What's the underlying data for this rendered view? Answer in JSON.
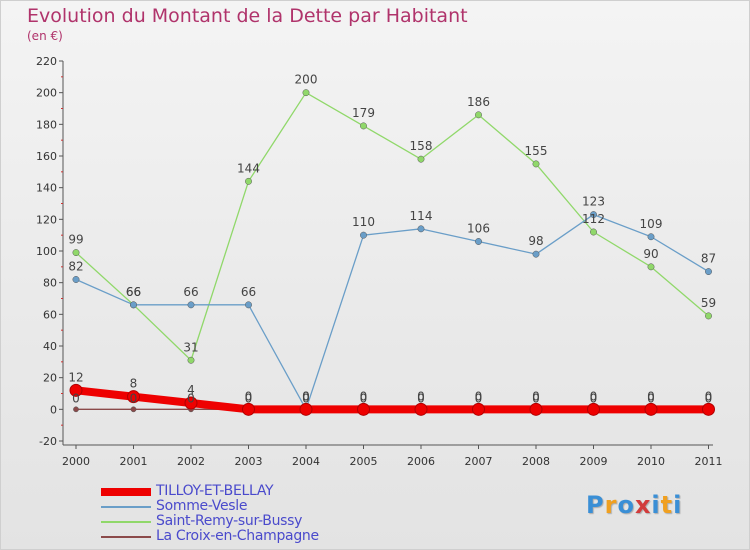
{
  "title": "Evolution du Montant de la Dette par Habitant",
  "unit": "(en €)",
  "logo": {
    "text": "Proxiti",
    "letter_colors": [
      "#3a8fd6",
      "#f0a020",
      "#3a8fd6",
      "#d23c3c",
      "#3a8fd6",
      "#f0a020",
      "#3a8fd6"
    ]
  },
  "chart_data": {
    "type": "line",
    "categories": [
      "2000",
      "2001",
      "2002",
      "2003",
      "2004",
      "2005",
      "2006",
      "2007",
      "2008",
      "2009",
      "2010",
      "2011"
    ],
    "ylim": [
      -20,
      220
    ],
    "yticks": [
      "-20",
      "0",
      "20",
      "40",
      "60",
      "80",
      "100",
      "120",
      "140",
      "160",
      "180",
      "200",
      "220"
    ],
    "grid": false,
    "legend_position": "bottom",
    "series": [
      {
        "name": "TILLOY-ET-BELLAY",
        "color": "#ee0000",
        "values": [
          12,
          8,
          4,
          0,
          0,
          0,
          0,
          0,
          0,
          0,
          0,
          0
        ],
        "labels": [
          "12",
          "8",
          "4",
          "0",
          "0",
          "0",
          "0",
          "0",
          "0",
          "0",
          "0",
          "0"
        ]
      },
      {
        "name": "Somme-Vesle",
        "color": "#6a9ec8",
        "values": [
          82,
          66,
          66,
          66,
          0,
          110,
          114,
          106,
          98,
          123,
          109,
          87
        ],
        "labels": [
          "82",
          "66",
          "66",
          "66",
          "0",
          "110",
          "114",
          "106",
          "98",
          "123",
          "109",
          "87"
        ]
      },
      {
        "name": "Saint-Remy-sur-Bussy",
        "color": "#90d86a",
        "values": [
          99,
          66,
          31,
          144,
          200,
          179,
          158,
          186,
          155,
          112,
          90,
          59
        ],
        "labels": [
          "99",
          "66",
          "31",
          "144",
          "200",
          "179",
          "158",
          "186",
          "155",
          "112",
          "90",
          "59"
        ]
      },
      {
        "name": "La Croix-en-Champagne",
        "color": "#8b4a4a",
        "values": [
          0,
          0,
          0,
          0,
          0,
          0,
          0,
          0,
          0,
          0,
          0,
          0
        ],
        "labels": [
          "0",
          "0",
          "0",
          "0",
          "0",
          "0",
          "0",
          "0",
          "0",
          "0",
          "0",
          "0"
        ]
      }
    ]
  }
}
